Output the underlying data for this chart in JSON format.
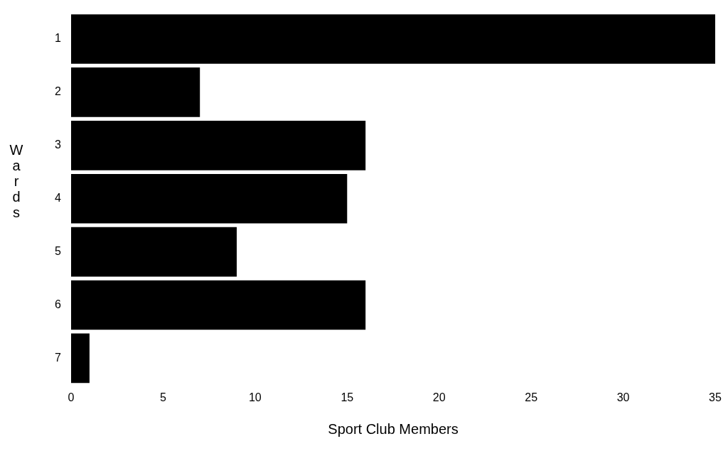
{
  "chart_data": {
    "type": "bar",
    "orientation": "horizontal",
    "xlabel": "Sport Club Members",
    "ylabel": "Wards",
    "categories": [
      "1",
      "2",
      "3",
      "4",
      "5",
      "6",
      "7"
    ],
    "values": [
      35,
      7,
      16,
      15,
      9,
      16,
      1
    ],
    "color": "#000000",
    "xlim": [
      0,
      35
    ],
    "xticks": [
      0,
      5,
      10,
      15,
      20,
      25,
      30,
      35
    ],
    "grid": false,
    "legend": false
  }
}
